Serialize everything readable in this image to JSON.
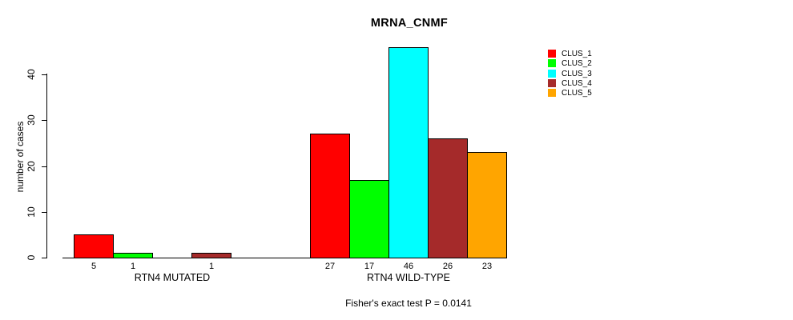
{
  "chart_data": {
    "type": "bar",
    "title": "MRNA_CNMF",
    "ylabel": "number of cases",
    "annotation": "Fisher's exact test P = 0.0141",
    "yticks": [
      0,
      10,
      20,
      30,
      40
    ],
    "ylim": [
      0,
      46
    ],
    "grid": false,
    "legend_position": "top-right",
    "series": [
      {
        "name": "CLUS_1",
        "color": "#FF0000",
        "values": [
          5,
          27
        ]
      },
      {
        "name": "CLUS_2",
        "color": "#00FF00",
        "values": [
          1,
          17
        ]
      },
      {
        "name": "CLUS_3",
        "color": "#00FFFF",
        "values": [
          0,
          46
        ]
      },
      {
        "name": "CLUS_4",
        "color": "#A52A2A",
        "values": [
          1,
          26
        ]
      },
      {
        "name": "CLUS_5",
        "color": "#FFA500",
        "values": [
          0,
          23
        ]
      }
    ],
    "groups": [
      {
        "label": "RTN4 MUTATED",
        "values": [
          5,
          1,
          0,
          1,
          0
        ],
        "bar_labels": [
          "5",
          "1",
          "",
          "1",
          ""
        ]
      },
      {
        "label": "RTN4 WILD-TYPE",
        "values": [
          27,
          17,
          46,
          26,
          23
        ],
        "bar_labels": [
          "27",
          "17",
          "46",
          "26",
          "23"
        ]
      }
    ]
  }
}
